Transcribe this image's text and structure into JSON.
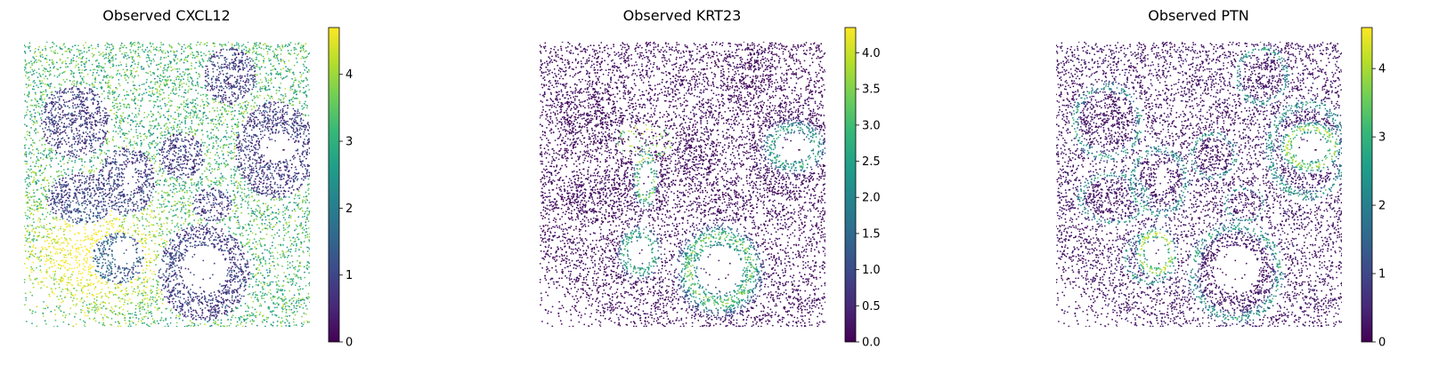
{
  "chart_data": [
    {
      "type": "scatter",
      "title": "Observed CXCL12",
      "colormap": "viridis",
      "colorbar": {
        "min": 0,
        "max": 4.7,
        "ticks": [
          0,
          1,
          2,
          3,
          4
        ],
        "tick_labels": [
          "0",
          "1",
          "2",
          "3",
          "4"
        ]
      },
      "axes_visible": false,
      "grid": false,
      "pattern": "CXCL12 high in stroma between epithelial islands; strongest in lower-left region"
    },
    {
      "type": "scatter",
      "title": "Observed KRT23",
      "colormap": "viridis",
      "colorbar": {
        "min": 0,
        "max": 4.35,
        "ticks": [
          0,
          0.5,
          1,
          1.5,
          2,
          2.5,
          3,
          3.5,
          4
        ],
        "tick_labels": [
          "0.0",
          "0.5",
          "1.0",
          "1.5",
          "2.0",
          "2.5",
          "3.0",
          "3.5",
          "4.0"
        ]
      },
      "axes_visible": false,
      "grid": false,
      "pattern": "KRT23 mostly low; high in rings lining epithelial lumens"
    },
    {
      "type": "scatter",
      "title": "Observed PTN",
      "colormap": "viridis",
      "colorbar": {
        "min": 0,
        "max": 4.6,
        "ticks": [
          0,
          1,
          2,
          3,
          4
        ],
        "tick_labels": [
          "0",
          "1",
          "2",
          "3",
          "4"
        ]
      },
      "axes_visible": false,
      "grid": false,
      "pattern": "PTN mostly low; high in ring around lower-left gland and right lumen, moderate around glands"
    }
  ],
  "colors": {
    "viridis": [
      "#440154",
      "#482878",
      "#3e4989",
      "#31688e",
      "#26828e",
      "#1f9e89",
      "#35b779",
      "#6ece58",
      "#b5de2b",
      "#fde725"
    ],
    "background": "#ffffff",
    "text": "#000000"
  }
}
